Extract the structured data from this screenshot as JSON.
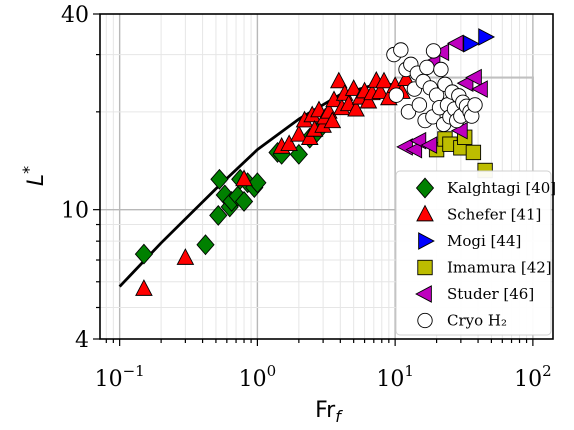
{
  "chart_data": {
    "type": "scatter",
    "xscale": "log",
    "yscale": "log",
    "xlim": [
      0.072,
      140
    ],
    "ylim": [
      4,
      40
    ],
    "grid": true,
    "legend_position": "lower-right",
    "xlabel_main": "Fr",
    "xlabel_sub": "f",
    "ylabel_main": "L",
    "ylabel_sup": "*",
    "y_ticks": [
      {
        "value": 4,
        "label": "4"
      },
      {
        "value": 10,
        "label": "10"
      },
      {
        "value": 40,
        "label": "40"
      }
    ],
    "x_ticks": [
      {
        "value": 0.1,
        "base": "10",
        "exp": "−1"
      },
      {
        "value": 1,
        "base": "10",
        "exp": "0"
      },
      {
        "value": 10,
        "base": "10",
        "exp": "1"
      },
      {
        "value": 100,
        "base": "10",
        "exp": "2"
      }
    ],
    "series": [
      {
        "name": "Kalghtagi [40]",
        "marker": "diamond",
        "color": "#008000",
        "points": [
          [
            0.15,
            7.3
          ],
          [
            0.42,
            7.8
          ],
          [
            0.52,
            9.6
          ],
          [
            0.53,
            12.4
          ],
          [
            0.58,
            11.1
          ],
          [
            0.63,
            10.2
          ],
          [
            0.65,
            10.6
          ],
          [
            0.72,
            11.0
          ],
          [
            0.75,
            12.4
          ],
          [
            0.8,
            10.6
          ],
          [
            0.85,
            12.1
          ],
          [
            0.95,
            11.7
          ],
          [
            1.0,
            12.1
          ],
          [
            1.4,
            15.0
          ],
          [
            1.5,
            14.8
          ],
          [
            2.0,
            14.8
          ],
          [
            2.4,
            16.6
          ],
          [
            2.7,
            17.3
          ]
        ]
      },
      {
        "name": "Schefer [41]",
        "marker": "triangle-up",
        "color": "#ff0000",
        "points": [
          [
            0.15,
            5.7
          ],
          [
            0.3,
            7.1
          ],
          [
            0.8,
            12.4
          ],
          [
            1.5,
            15.6
          ],
          [
            1.7,
            15.9
          ],
          [
            2.0,
            17.0
          ],
          [
            2.2,
            18.8
          ],
          [
            2.4,
            16.6
          ],
          [
            2.5,
            19.5
          ],
          [
            2.6,
            17.6
          ],
          [
            2.8,
            20.2
          ],
          [
            3.0,
            18.1
          ],
          [
            3.1,
            19.2
          ],
          [
            3.3,
            20.0
          ],
          [
            3.5,
            18.7
          ],
          [
            3.6,
            21.7
          ],
          [
            3.9,
            24.8
          ],
          [
            4.1,
            20.5
          ],
          [
            4.3,
            22.7
          ],
          [
            4.6,
            21.1
          ],
          [
            5.0,
            23.5
          ],
          [
            5.2,
            20.3
          ],
          [
            5.6,
            22.1
          ],
          [
            6.0,
            23.1
          ],
          [
            6.4,
            21.5
          ],
          [
            6.8,
            22.8
          ],
          [
            7.3,
            24.9
          ],
          [
            7.8,
            23.0
          ],
          [
            8.3,
            24.8
          ],
          [
            9.0,
            22.0
          ],
          [
            10.0,
            24.0
          ],
          [
            11.2,
            23.0
          ],
          [
            12.0,
            25.2
          ]
        ]
      },
      {
        "name": "Mogi [44]",
        "marker": "triangle-right",
        "color": "#0000ff",
        "points": [
          [
            35,
            32.4
          ],
          [
            45,
            34.0
          ]
        ]
      },
      {
        "name": "Imamura [42]",
        "marker": "square",
        "color": "#bdbd00",
        "points": [
          [
            20,
            15.3
          ],
          [
            23,
            16.5
          ],
          [
            25,
            15.9
          ],
          [
            30,
            15.5
          ],
          [
            32,
            16.7
          ],
          [
            37,
            15.0
          ],
          [
            45,
            13.2
          ]
        ]
      },
      {
        "name": "Studer [46]",
        "marker": "triangle-left",
        "color": "#bf00bf",
        "points": [
          [
            12,
            15.6
          ],
          [
            14,
            15.3
          ],
          [
            15,
            16.3
          ],
          [
            18,
            15.8
          ],
          [
            19,
            28.5
          ],
          [
            22,
            30.5
          ],
          [
            28,
            32.5
          ],
          [
            30,
            17.5
          ],
          [
            33,
            24.5
          ],
          [
            38,
            25.5
          ],
          [
            42,
            23.5
          ]
        ]
      },
      {
        "name": "Cryo H₂",
        "marker": "circle",
        "color": "#ffffff",
        "points": [
          [
            9.8,
            30.0
          ],
          [
            10.2,
            22.5
          ],
          [
            11,
            31.0
          ],
          [
            12,
            27.0
          ],
          [
            12.5,
            20.0
          ],
          [
            13,
            28.0
          ],
          [
            13.8,
            23.5
          ],
          [
            14.5,
            26.3
          ],
          [
            15,
            21.0
          ],
          [
            16,
            24.8
          ],
          [
            16.5,
            18.8
          ],
          [
            17,
            27.4
          ],
          [
            18,
            23.7
          ],
          [
            18.8,
            19.3
          ],
          [
            19,
            30.8
          ],
          [
            20,
            22.5
          ],
          [
            21,
            20.6
          ],
          [
            21.5,
            27.0
          ],
          [
            22.5,
            18.3
          ],
          [
            23,
            24.3
          ],
          [
            24,
            21.0
          ],
          [
            25,
            19.3
          ],
          [
            26,
            23.0
          ],
          [
            27,
            20.4
          ],
          [
            28,
            18.8
          ],
          [
            29,
            22.4
          ],
          [
            30,
            19.4
          ],
          [
            31,
            21.4
          ],
          [
            33,
            20.8
          ],
          [
            35,
            20.0
          ],
          [
            36,
            19.4
          ],
          [
            38,
            21.0
          ]
        ]
      }
    ],
    "fit_line": [
      [
        0.1,
        5.8
      ],
      [
        0.2,
        7.9
      ],
      [
        0.5,
        11.6
      ],
      [
        1.0,
        15.3
      ],
      [
        2.0,
        19.0
      ],
      [
        4.0,
        22.6
      ],
      [
        7.0,
        24.2
      ],
      [
        10.0,
        24.3
      ]
    ],
    "reference_box": [
      [
        10,
        25.5
      ],
      [
        100,
        25.5
      ],
      [
        100,
        20
      ]
    ]
  }
}
